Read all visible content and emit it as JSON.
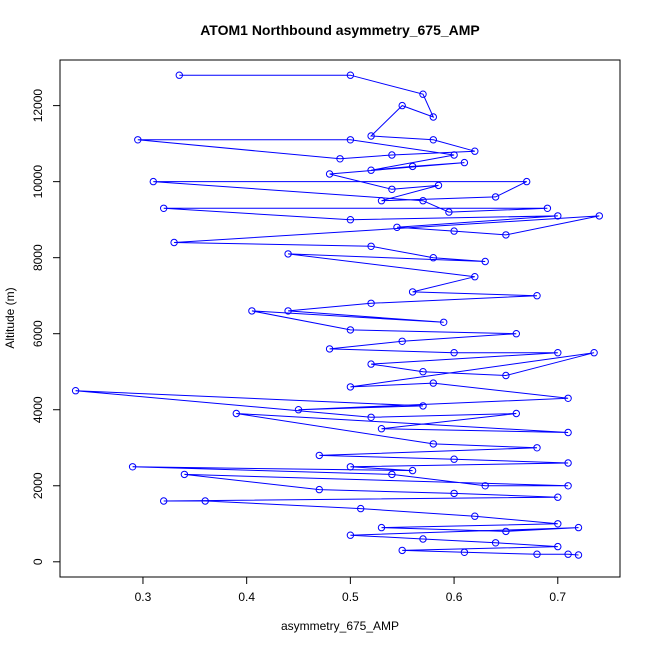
{
  "chart_data": {
    "type": "line",
    "title": "ATOM1 Northbound asymmetry_675_AMP",
    "xlabel": "asymmetry_675_AMP",
    "ylabel": "Altitude (m)",
    "xlim": [
      0.22,
      0.76
    ],
    "ylim": [
      -400,
      13200
    ],
    "xticks": [
      0.3,
      0.4,
      0.5,
      0.6,
      0.7
    ],
    "yticks": [
      0,
      2000,
      4000,
      6000,
      8000,
      10000,
      12000
    ],
    "grid": false,
    "legend": "none",
    "marker": "open-circle",
    "color": "#0000ff",
    "series": [
      {
        "x": [
          0.335,
          0.5,
          0.57,
          0.58,
          0.55,
          0.52,
          0.58,
          0.62,
          0.54,
          0.49,
          0.295,
          0.5,
          0.6,
          0.52,
          0.56,
          0.61,
          0.48,
          0.54,
          0.585,
          0.53,
          0.64,
          0.67,
          0.31,
          0.57,
          0.595,
          0.69,
          0.32,
          0.5,
          0.7,
          0.545,
          0.6,
          0.65,
          0.74,
          0.33,
          0.52,
          0.58,
          0.63,
          0.44,
          0.62,
          0.56,
          0.68,
          0.52,
          0.44,
          0.59,
          0.405,
          0.5,
          0.66,
          0.55,
          0.48,
          0.6,
          0.7,
          0.52,
          0.57,
          0.65,
          0.735,
          0.5,
          0.58,
          0.71,
          0.45,
          0.57,
          0.235,
          0.52,
          0.66,
          0.53,
          0.71,
          0.39,
          0.58,
          0.68,
          0.47,
          0.6,
          0.71,
          0.5,
          0.56,
          0.29,
          0.54,
          0.63,
          0.71,
          0.34,
          0.47,
          0.6,
          0.7,
          0.32,
          0.36,
          0.51,
          0.62,
          0.7,
          0.53,
          0.65,
          0.72,
          0.5,
          0.57,
          0.64,
          0.7,
          0.55,
          0.61,
          0.68,
          0.71,
          0.72
        ],
        "y": [
          12800,
          12800,
          12300,
          11700,
          12000,
          11200,
          11100,
          10800,
          10700,
          10600,
          11100,
          11100,
          10700,
          10300,
          10400,
          10500,
          10200,
          9800,
          9900,
          9500,
          9600,
          10000,
          10000,
          9500,
          9200,
          9300,
          9300,
          9000,
          9100,
          8800,
          8700,
          8600,
          9100,
          8400,
          8300,
          8000,
          7900,
          8100,
          7500,
          7100,
          7000,
          6800,
          6600,
          6300,
          6600,
          6100,
          6000,
          5800,
          5600,
          5500,
          5500,
          5200,
          5000,
          4900,
          5500,
          4600,
          4700,
          4300,
          4000,
          4100,
          4500,
          3800,
          3900,
          3500,
          3400,
          3900,
          3100,
          3000,
          2800,
          2700,
          2600,
          2500,
          2400,
          2500,
          2300,
          2000,
          2000,
          2300,
          1900,
          1800,
          1700,
          1600,
          1600,
          1400,
          1200,
          1000,
          900,
          800,
          900,
          700,
          600,
          500,
          400,
          300,
          250,
          200,
          200,
          180
        ]
      }
    ]
  }
}
